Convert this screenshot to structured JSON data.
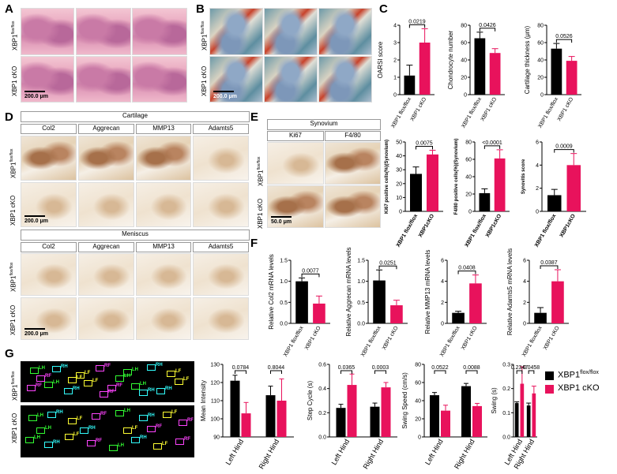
{
  "panels": {
    "A": "A",
    "B": "B",
    "C": "C",
    "D": "D",
    "E": "E",
    "F": "F",
    "G": "G"
  },
  "row_labels": {
    "flox": "XBP1",
    "flox_sup": "flox/flox",
    "cko": "XBP1 cKO"
  },
  "scale_labels": {
    "s200": "200.0 μm",
    "s50": "50.0 μm"
  },
  "D": {
    "cartilage_title": "Cartilage",
    "meniscus_title": "Meniscus",
    "columns": [
      "Col2",
      "Aggrecan",
      "MMP13",
      "Adamts5"
    ]
  },
  "E": {
    "synovium_title": "Synovium",
    "columns": [
      "Ki67",
      "F4/80"
    ]
  },
  "colors": {
    "black_bar": "#000000",
    "pink_bar": "#e8125c",
    "gait_green": "#33ff33",
    "gait_cyan": "#33ffff",
    "gait_yellow": "#ffff33",
    "gait_magenta": "#ff44ff"
  },
  "G_gait": {
    "labels": [
      "LH",
      "RH",
      "LF",
      "RF",
      "LH",
      "RH",
      "LF",
      "RF",
      "LH",
      "RH",
      "LF",
      "RF",
      "LH",
      "RH",
      "LF",
      "RF",
      "LH",
      "RH",
      "LF",
      "RF"
    ]
  },
  "chart_data": [
    {
      "id": "C1",
      "type": "bar",
      "ylabel": "OARSI score",
      "categories": [
        "XBP1 flox/flox",
        "XBP1 cKO"
      ],
      "values": [
        1.1,
        3.0
      ],
      "errors": [
        0.6,
        0.8
      ],
      "ylim": [
        0,
        4
      ],
      "yticks": [
        0,
        1,
        2,
        3,
        4
      ],
      "pvalue": "0.0219"
    },
    {
      "id": "C2",
      "type": "bar",
      "ylabel": "Chondrocyte number",
      "categories": [
        "XBP1 flox/flox",
        "XBP1 cKO"
      ],
      "values": [
        65,
        48
      ],
      "errors": [
        7,
        5
      ],
      "ylim": [
        0,
        80
      ],
      "yticks": [
        0,
        20,
        40,
        60,
        80
      ],
      "pvalue": "0.0426"
    },
    {
      "id": "C3",
      "type": "bar",
      "ylabel": "Cartilage thickness (μm)",
      "categories": [
        "XBP1 flox/flox",
        "XBP1 cKO"
      ],
      "values": [
        53,
        39
      ],
      "errors": [
        6,
        5
      ],
      "ylim": [
        0,
        80
      ],
      "yticks": [
        0,
        20,
        40,
        60,
        80
      ],
      "pvalue": "0.0526"
    },
    {
      "id": "E1",
      "type": "bar",
      "ylabel": "Ki67 positive cells(%)(Synovium)",
      "categories": [
        "XBP1 flox/flox",
        "XBP1cKO"
      ],
      "values": [
        27,
        41
      ],
      "errors": [
        5,
        3
      ],
      "ylim": [
        0,
        50
      ],
      "yticks": [
        0,
        10,
        20,
        30,
        40,
        50
      ],
      "pvalue": "0.0075"
    },
    {
      "id": "E2",
      "type": "bar",
      "ylabel": "F4/80 positive cells(%)(Synovium)",
      "categories": [
        "XBP1 flox/flox",
        "XBP1cKO"
      ],
      "values": [
        21,
        61
      ],
      "errors": [
        5,
        10
      ],
      "ylim": [
        0,
        80
      ],
      "yticks": [
        0,
        20,
        40,
        60,
        80
      ],
      "pvalue": "<0.0001"
    },
    {
      "id": "E3",
      "type": "bar",
      "ylabel": "Synovitis score",
      "categories": [
        "XBP1 flox/flox",
        "XBP1cKO"
      ],
      "values": [
        1.4,
        4.0
      ],
      "errors": [
        0.5,
        1.0
      ],
      "ylim": [
        0,
        6
      ],
      "yticks": [
        0,
        2,
        4,
        6
      ],
      "pvalue": "0.0009"
    },
    {
      "id": "F1",
      "type": "bar",
      "ylabel": "Relative Col2 mRNA levels",
      "categories": [
        "XBP1 flox/flox",
        "XBP1 cKO"
      ],
      "values": [
        1.0,
        0.47
      ],
      "errors": [
        0.08,
        0.18
      ],
      "ylim": [
        0,
        1.5
      ],
      "yticks": [
        0.0,
        0.5,
        1.0,
        1.5
      ],
      "pvalue": "0.0077"
    },
    {
      "id": "F2",
      "type": "bar",
      "ylabel": "Relative Aggrecan mRNA levels",
      "categories": [
        "XBP1 flox/flox",
        "XBP1 cKO"
      ],
      "values": [
        1.02,
        0.43
      ],
      "errors": [
        0.25,
        0.12
      ],
      "ylim": [
        0,
        1.5
      ],
      "yticks": [
        0.0,
        0.5,
        1.0,
        1.5
      ],
      "pvalue": "0.0251"
    },
    {
      "id": "F3",
      "type": "bar",
      "ylabel": "Relative MMP13 mRNA levels",
      "categories": [
        "XBP1 flox/flox",
        "XBP1 cKO"
      ],
      "values": [
        1.0,
        3.8
      ],
      "errors": [
        0.15,
        0.8
      ],
      "ylim": [
        0,
        6
      ],
      "yticks": [
        0,
        2,
        4,
        6
      ],
      "pvalue": "0.0408"
    },
    {
      "id": "F4",
      "type": "bar",
      "ylabel": "Relative Adamts5 mRNA levels",
      "categories": [
        "XBP1 flox/flox",
        "XBP1 cKO"
      ],
      "values": [
        1.0,
        4.0
      ],
      "errors": [
        0.5,
        1.1
      ],
      "ylim": [
        0,
        6
      ],
      "yticks": [
        0,
        2,
        4,
        6
      ],
      "pvalue": "0.0387"
    },
    {
      "id": "G1",
      "type": "bar",
      "ylabel": "Mean Intensity",
      "categories": [
        "Left Hind",
        "Right Hind"
      ],
      "series": [
        {
          "name": "XBP1 flox/flox",
          "values": [
            121,
            113
          ],
          "errors": [
            3,
            5
          ]
        },
        {
          "name": "XBP1 cKO",
          "values": [
            103,
            110
          ],
          "errors": [
            6,
            12
          ]
        }
      ],
      "ylim": [
        90,
        130
      ],
      "yticks": [
        90,
        100,
        110,
        120,
        130
      ],
      "pvalues": [
        "0.0784",
        "0.8044"
      ]
    },
    {
      "id": "G2",
      "type": "bar",
      "ylabel": "Step Cycle (s)",
      "categories": [
        "Left Hind",
        "Right Hind"
      ],
      "series": [
        {
          "name": "XBP1 flox/flox",
          "values": [
            0.24,
            0.25
          ],
          "errors": [
            0.03,
            0.03
          ]
        },
        {
          "name": "XBP1 cKO",
          "values": [
            0.43,
            0.41
          ],
          "errors": [
            0.09,
            0.04
          ]
        }
      ],
      "ylim": [
        0,
        0.6
      ],
      "yticks": [
        0.0,
        0.2,
        0.4,
        0.6
      ],
      "pvalues": [
        "0.0365",
        "0.0003"
      ]
    },
    {
      "id": "G3",
      "type": "bar",
      "ylabel": "Swing Speed (cm/s)",
      "categories": [
        "Left Hind",
        "Right Hind"
      ],
      "series": [
        {
          "name": "XBP1 flox/flox",
          "values": [
            46,
            56
          ],
          "errors": [
            3,
            3
          ]
        },
        {
          "name": "XBP1 cKO",
          "values": [
            29,
            34
          ],
          "errors": [
            6,
            3
          ]
        }
      ],
      "ylim": [
        0,
        80
      ],
      "yticks": [
        0,
        20,
        40,
        60,
        80
      ],
      "pvalues": [
        "0.0522",
        "0.0088"
      ]
    },
    {
      "id": "G4",
      "type": "bar",
      "ylabel": "Swing (s)",
      "categories": [
        "Left Hind",
        "Right Hind"
      ],
      "series": [
        {
          "name": "XBP1 flox/flox",
          "values": [
            0.14,
            0.13
          ],
          "errors": [
            0.005,
            0.01
          ]
        },
        {
          "name": "XBP1 cKO",
          "values": [
            0.22,
            0.18
          ],
          "errors": [
            0.07,
            0.03
          ]
        }
      ],
      "ylim": [
        0,
        0.3
      ],
      "yticks": [
        0.0,
        0.1,
        0.2,
        0.3
      ],
      "pvalues": [
        "0.2347",
        "0.0458"
      ]
    }
  ],
  "legend": {
    "flox": "XBP1",
    "flox_sup": "flox/flox",
    "cko": "XBP1 cKO"
  }
}
